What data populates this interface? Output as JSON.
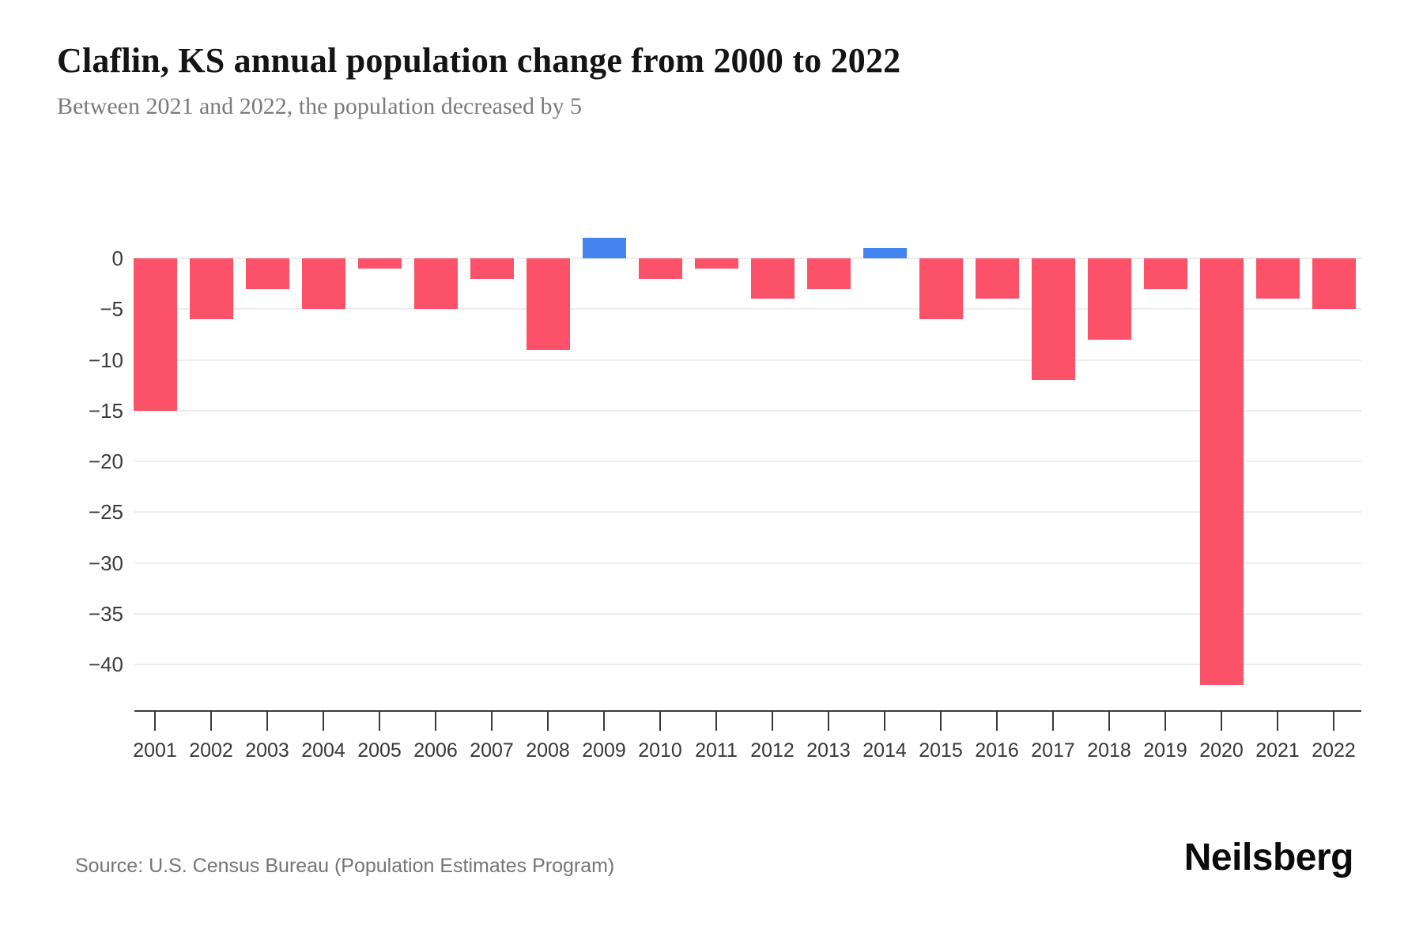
{
  "header": {
    "title": "Claflin, KS annual population change from 2000 to 2022",
    "subtitle": "Between 2021 and 2022, the population decreased by 5"
  },
  "chart_data": {
    "type": "bar",
    "title": "Claflin, KS annual population change from 2000 to 2022",
    "subtitle": "Between 2021 and 2022, the population decreased by 5",
    "categories": [
      "2001",
      "2002",
      "2003",
      "2004",
      "2005",
      "2006",
      "2007",
      "2008",
      "2009",
      "2010",
      "2011",
      "2012",
      "2013",
      "2014",
      "2015",
      "2016",
      "2017",
      "2018",
      "2019",
      "2020",
      "2021",
      "2022"
    ],
    "values": [
      -15,
      -6,
      -3,
      -5,
      -1,
      -5,
      -2,
      -9,
      2,
      -2,
      -1,
      -4,
      -3,
      1,
      -6,
      -4,
      -12,
      -8,
      -3,
      -42,
      -4,
      -5
    ],
    "xlabel": "",
    "ylabel": "",
    "ytick_values": [
      0,
      -5,
      -10,
      -15,
      -20,
      -25,
      -30,
      -35,
      -40
    ],
    "ytick_labels": [
      "0",
      "−5",
      "−10",
      "−15",
      "−20",
      "−25",
      "−30",
      "−35",
      "−40"
    ],
    "ylim": [
      -45,
      5
    ],
    "grid": true,
    "legend": "none",
    "colors": {
      "negative_bar": "#FB5169",
      "positive_bar": "#4484EE",
      "gridline": "#ededed",
      "axis": "#3a3a3a"
    }
  },
  "footer": {
    "source": "Source: U.S. Census Bureau (Population Estimates Program)",
    "logo": "Neilsberg"
  }
}
